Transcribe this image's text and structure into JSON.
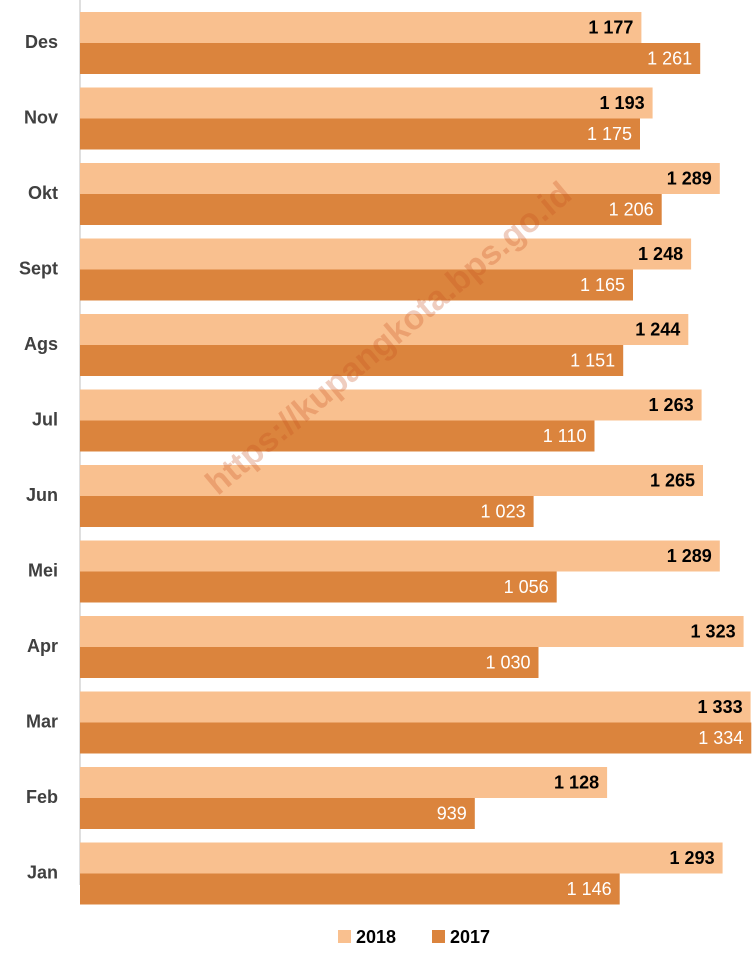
{
  "chart_data": {
    "type": "barh",
    "categories": [
      "Des",
      "Nov",
      "Okt",
      "Sept",
      "Ags",
      "Jul",
      "Jun",
      "Mei",
      "Apr",
      "Mar",
      "Feb",
      "Jan"
    ],
    "series": [
      {
        "name": "2018",
        "color": "#f9c08f",
        "values": [
          1177,
          1193,
          1289,
          1248,
          1244,
          1263,
          1265,
          1289,
          1323,
          1333,
          1128,
          1293
        ],
        "value_labels": [
          "1 177",
          "1 193",
          "1 289",
          "1 248",
          "1 244",
          "1 263",
          "1 265",
          "1 289",
          "1 323",
          "1 333",
          "1 128",
          "1 293"
        ]
      },
      {
        "name": "2017",
        "color": "#db843d",
        "values": [
          1261,
          1175,
          1206,
          1165,
          1151,
          1110,
          1023,
          1056,
          1030,
          1334,
          939,
          1146
        ],
        "value_labels": [
          "1 261",
          "1 175",
          "1 206",
          "1 165",
          "1 151",
          "1 110",
          "1 023",
          "1 056",
          "1 030",
          "1 334",
          "939",
          "1 146"
        ]
      }
    ],
    "xlim": [
      375,
      1335
    ],
    "legend": "bottom",
    "watermark": "https://kupangkota.bps.go.id"
  }
}
